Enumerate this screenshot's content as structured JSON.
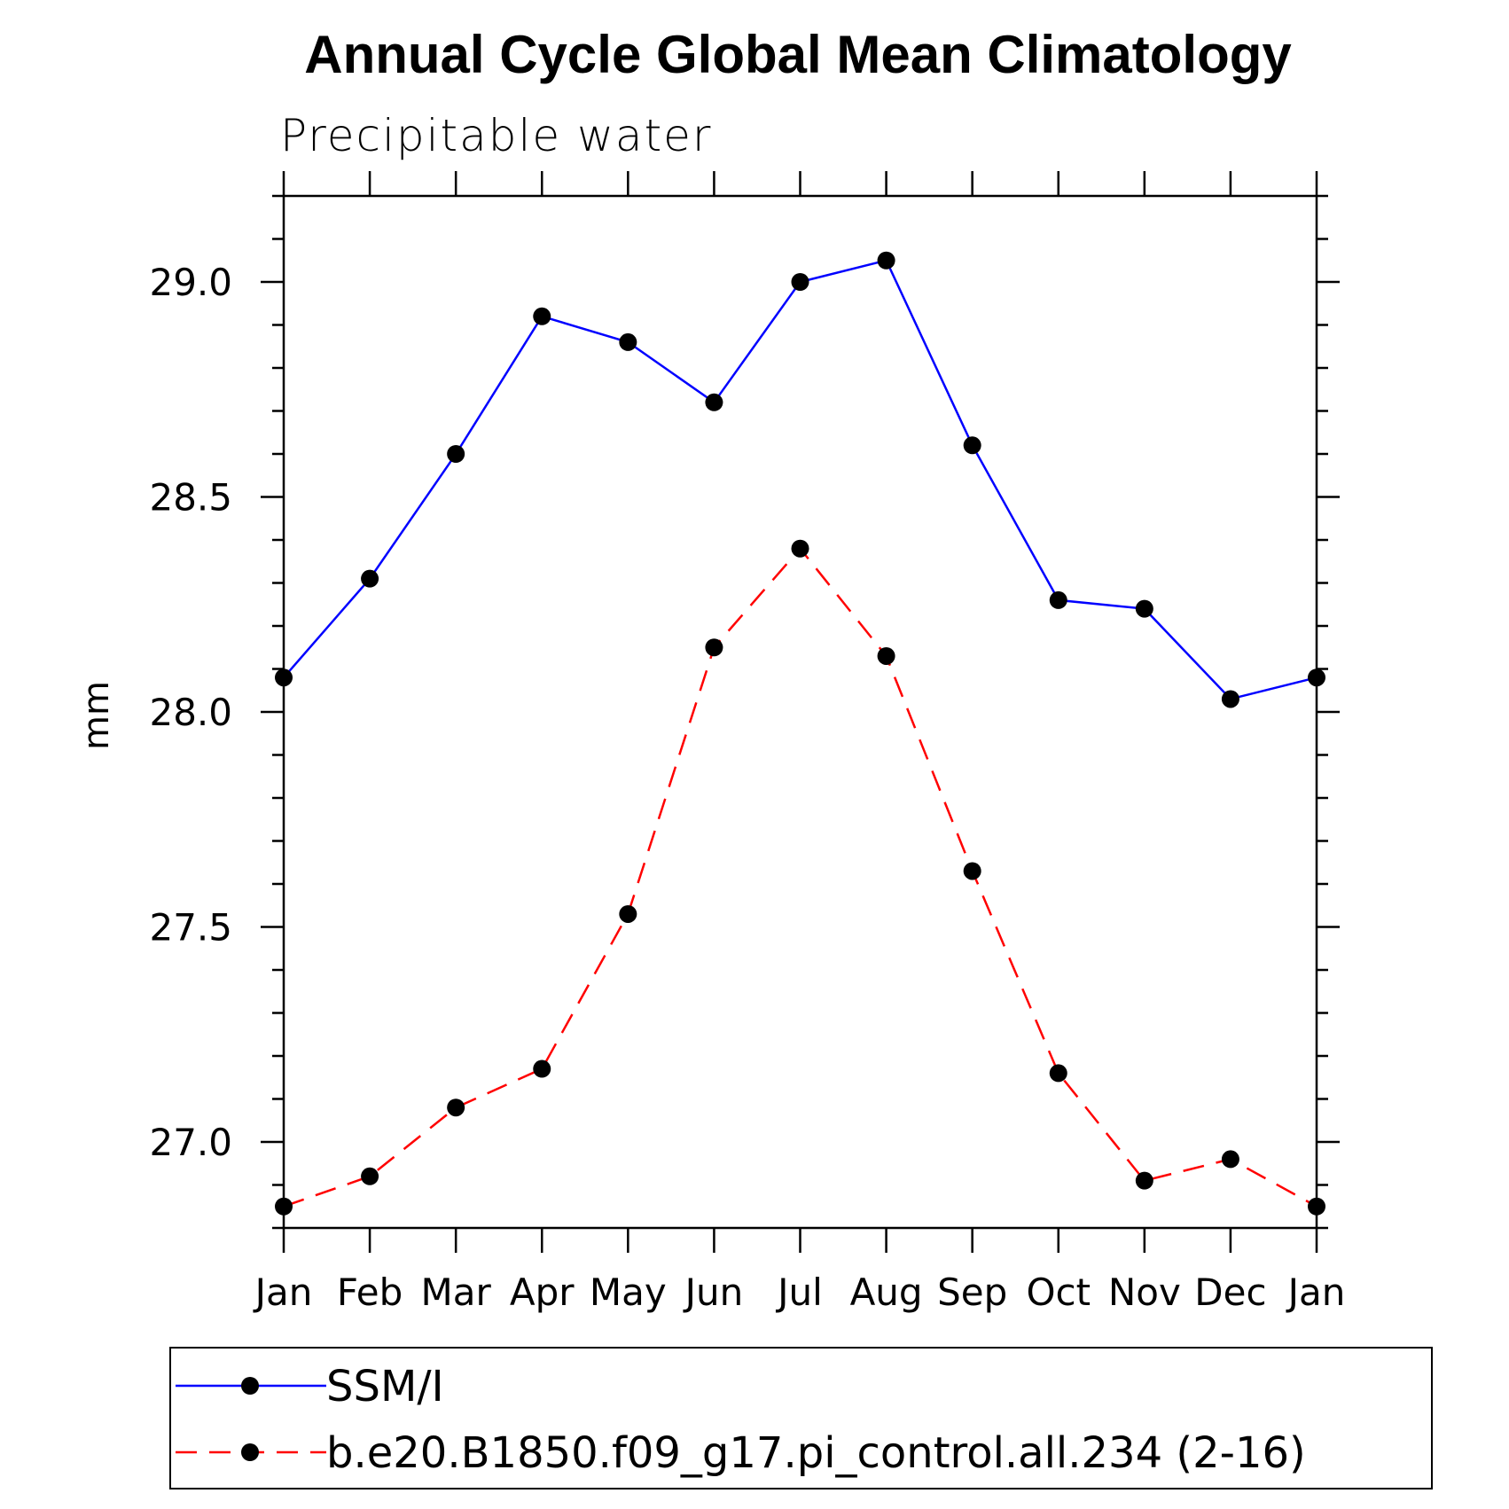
{
  "chart_data": {
    "type": "line",
    "title": "Annual Cycle Global Mean Climatology",
    "subtitle": "Precipitable water",
    "xlabel": "",
    "ylabel": "mm",
    "categories": [
      "Jan",
      "Feb",
      "Mar",
      "Apr",
      "May",
      "Jun",
      "Jul",
      "Aug",
      "Sep",
      "Oct",
      "Nov",
      "Dec",
      "Jan"
    ],
    "yticks": [
      "27.0",
      "27.5",
      "28.0",
      "28.5",
      "29.0"
    ],
    "ytick_values": [
      27.0,
      27.5,
      28.0,
      28.5,
      29.0
    ],
    "ylim": [
      26.8,
      29.2
    ],
    "grid": false,
    "legend_position": "bottom",
    "series": [
      {
        "name": "SSM/I",
        "color": "#0000ff",
        "dash": "solid",
        "marker": "filled-circle",
        "values": [
          28.08,
          28.31,
          28.6,
          28.92,
          28.86,
          28.72,
          29.0,
          29.05,
          28.62,
          28.26,
          28.24,
          28.03,
          28.08
        ]
      },
      {
        "name": "b.e20.B1850.f09_g17.pi_control.all.234 (2-16)",
        "color": "#ff0000",
        "dash": "dashed",
        "marker": "filled-circle",
        "values": [
          26.85,
          26.92,
          27.08,
          27.17,
          27.53,
          28.15,
          28.38,
          28.13,
          27.63,
          27.16,
          26.91,
          26.96,
          26.85
        ]
      }
    ]
  }
}
